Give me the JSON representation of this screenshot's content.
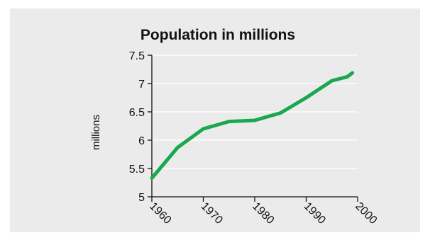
{
  "chart_data": {
    "type": "line",
    "title": "Population in millions",
    "xlabel": "",
    "ylabel": "millions",
    "xlim": [
      1960,
      2000
    ],
    "ylim": [
      5,
      7.5
    ],
    "x_ticks": [
      "1960",
      "1970",
      "1980",
      "1990",
      "2000"
    ],
    "y_ticks": [
      "5",
      "5.5",
      "6",
      "6.5",
      "7",
      "7.5"
    ],
    "grid": "horizontal",
    "series": [
      {
        "color": "#1aa84f",
        "x": [
          1960,
          1965,
          1970,
          1975,
          1980,
          1985,
          1990,
          1995,
          1998,
          1999
        ],
        "y": [
          5.33,
          5.87,
          6.2,
          6.33,
          6.35,
          6.48,
          6.75,
          7.05,
          7.12,
          7.19
        ]
      }
    ]
  }
}
